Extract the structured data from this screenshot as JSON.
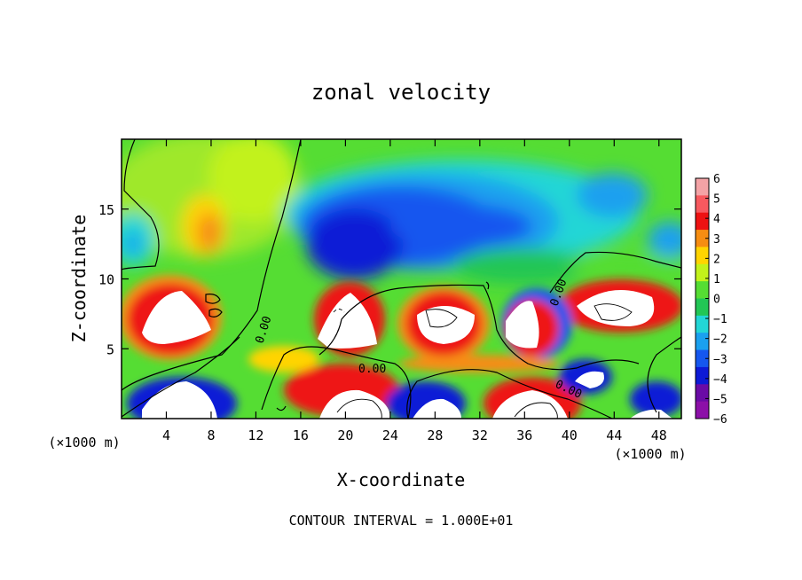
{
  "chart_data": {
    "type": "heatmap",
    "title": "zonal velocity",
    "xlabel": "X-coordinate",
    "ylabel": "Z-coordinate",
    "x_units": "(×1000 m)",
    "y_units": "(×1000 m)",
    "xlim": [
      0,
      50
    ],
    "ylim": [
      0,
      20
    ],
    "x_ticks": [
      4,
      8,
      12,
      16,
      20,
      24,
      28,
      32,
      36,
      40,
      44,
      48
    ],
    "y_ticks": [
      5,
      10,
      15
    ],
    "colorbar": {
      "levels": [
        6,
        5,
        4,
        3,
        2,
        1,
        0,
        -1,
        -2,
        -3,
        -4,
        -5,
        -6
      ],
      "colors": [
        "#f3a3a6",
        "#f7595f",
        "#ee1212",
        "#f68d12",
        "#ffd400",
        "#c2f21b",
        "#55dd33",
        "#22c655",
        "#22d6d6",
        "#1aa0ef",
        "#1557ef",
        "#0d1ad6",
        "#6a0ba6",
        "#8c10a8"
      ]
    },
    "contour_labels": [
      "0.00",
      "0.00",
      "0.00",
      "0.00",
      "0.00"
    ],
    "footnote": "CONTOUR INTERVAL = 1.000E+01"
  }
}
